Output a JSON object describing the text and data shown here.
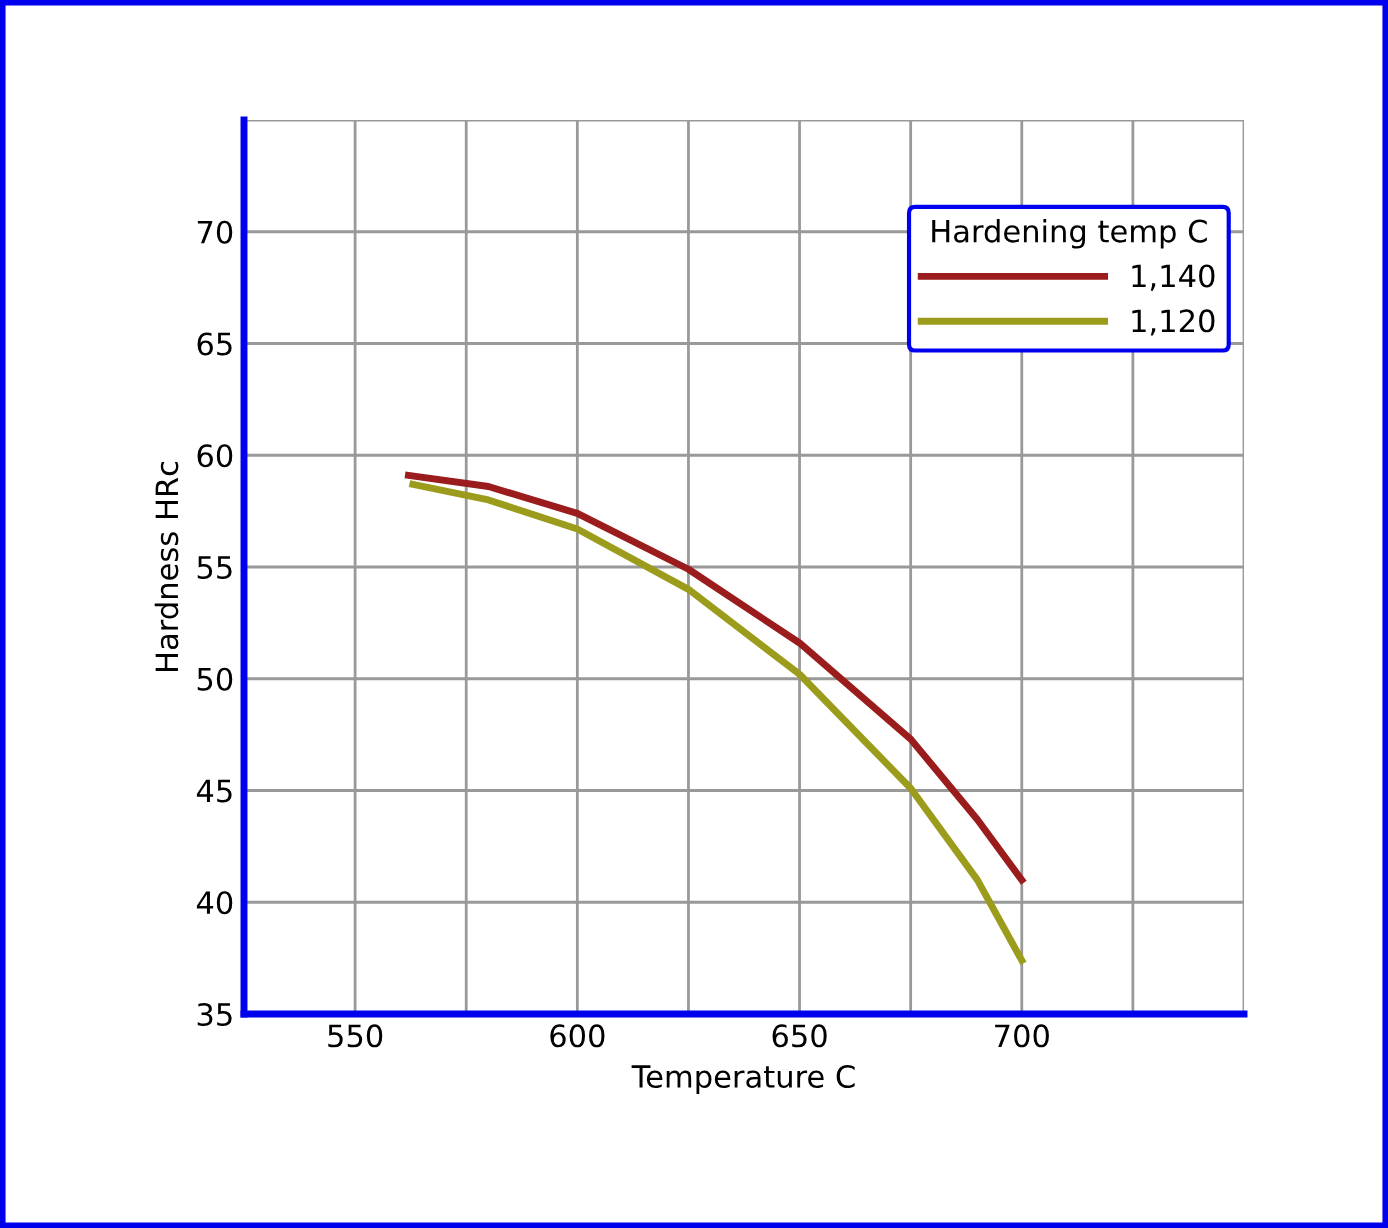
{
  "chart_data": {
    "type": "line",
    "xlabel": "Temperature C",
    "ylabel": "Hardness HRc",
    "legend_title": "Hardening temp C",
    "series": [
      {
        "name": "1,140",
        "color": "#9b1c1c",
        "x": [
          562,
          580,
          600,
          625,
          650,
          675,
          690,
          700
        ],
        "values": [
          59.1,
          58.6,
          57.4,
          54.9,
          51.6,
          47.3,
          43.7,
          41.0
        ]
      },
      {
        "name": "1,120",
        "color": "#9c9c1c",
        "x": [
          563,
          580,
          600,
          625,
          650,
          675,
          690,
          700
        ],
        "values": [
          58.7,
          58.0,
          56.7,
          54.0,
          50.2,
          45.1,
          41.0,
          37.4
        ]
      }
    ],
    "xlim": [
      525,
      750
    ],
    "xticks": [
      {
        "value": 525,
        "label": null
      },
      550,
      {
        "value": 575,
        "label": null
      },
      600,
      {
        "value": 625,
        "label": null
      },
      650,
      {
        "value": 675,
        "label": null
      },
      700,
      {
        "value": 725,
        "label": null
      },
      {
        "value": 750,
        "label": null
      }
    ],
    "ylim": [
      35,
      75
    ],
    "yticks": [
      35,
      40,
      45,
      50,
      55,
      60,
      65,
      70,
      {
        "value": 75,
        "label": null
      }
    ],
    "grid": true,
    "legend": "top right",
    "marker": "none",
    "line_style": "solid"
  }
}
